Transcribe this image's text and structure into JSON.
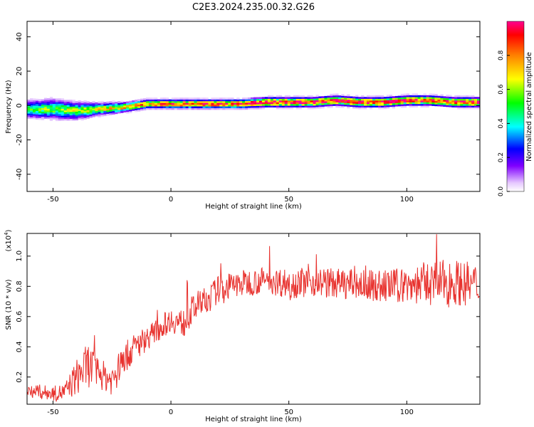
{
  "title": "C2E3.2024.235.00.32.G26",
  "colors": {
    "snr_line": "#e8322e",
    "axis": "#000000"
  },
  "chart_data": [
    {
      "type": "heatmap",
      "xlabel": "Height of straight line (km)",
      "ylabel": "Frequency (Hz)",
      "xlim": [
        -61,
        131
      ],
      "ylim": [
        -50,
        49
      ],
      "xticks": [
        -50,
        0,
        50,
        100
      ],
      "yticks": [
        -40,
        -20,
        0,
        20,
        40
      ],
      "grid": false,
      "colorbar": {
        "label": "Normalized spectral amplitude",
        "range": [
          0,
          1
        ],
        "ticks": [
          "0.0",
          "0.2",
          "0.4",
          "0.6",
          "0.8"
        ]
      },
      "ridge": {
        "x": [
          -61,
          -50,
          -40,
          -30,
          -20,
          -10,
          0,
          10,
          20,
          30,
          40,
          50,
          60,
          70,
          80,
          90,
          100,
          110,
          120,
          131
        ],
        "freq": [
          -2,
          -2,
          -3,
          -2,
          -1,
          1,
          1,
          1,
          1,
          1,
          2,
          2,
          2,
          3,
          2,
          2,
          3,
          3,
          2,
          2
        ],
        "half_width": [
          3.5,
          4,
          3.5,
          2.5,
          2,
          1.8,
          1.8,
          1.8,
          1.8,
          1.8,
          2,
          2,
          2,
          2,
          2,
          2,
          2,
          2,
          2,
          2
        ],
        "peak_amplitude": [
          0.5,
          0.55,
          0.6,
          0.65,
          0.75,
          0.85,
          0.9,
          0.92,
          0.9,
          0.92,
          0.95,
          0.95,
          0.95,
          0.95,
          0.95,
          0.95,
          0.95,
          0.95,
          0.95,
          0.95
        ]
      }
    },
    {
      "type": "line",
      "xlabel": "Height of straight line (km)",
      "ylabel": "SNR (10 * v/v)",
      "ylabel_scale": "(x10",
      "ylabel_scale_exp": "4",
      "ylabel_scale_close": ")",
      "xlim": [
        -61,
        131
      ],
      "ylim": [
        0.02,
        1.15
      ],
      "xticks": [
        -50,
        0,
        50,
        100
      ],
      "yticks": [
        0.2,
        0.4,
        0.6,
        0.8,
        1.0
      ],
      "ytick_labels": [
        "0.2",
        "0.4",
        "0.6",
        "0.8",
        "1.0"
      ],
      "grid": false,
      "series": [
        {
          "x": [
            -61,
            -55,
            -50,
            -45,
            -40,
            -35,
            -30,
            -25,
            -20,
            -15,
            -10,
            -5,
            0,
            5,
            10,
            15,
            20,
            25,
            30,
            40,
            50,
            60,
            70,
            80,
            90,
            100,
            110,
            120,
            131
          ],
          "mean": [
            0.12,
            0.1,
            0.09,
            0.1,
            0.2,
            0.28,
            0.22,
            0.18,
            0.32,
            0.4,
            0.46,
            0.52,
            0.58,
            0.55,
            0.66,
            0.7,
            0.78,
            0.8,
            0.82,
            0.84,
            0.82,
            0.83,
            0.82,
            0.81,
            0.8,
            0.81,
            0.82,
            0.83,
            0.8
          ],
          "spread": [
            0.05,
            0.05,
            0.05,
            0.06,
            0.12,
            0.15,
            0.1,
            0.1,
            0.1,
            0.1,
            0.08,
            0.08,
            0.08,
            0.1,
            0.1,
            0.1,
            0.09,
            0.09,
            0.09,
            0.09,
            0.1,
            0.1,
            0.1,
            0.1,
            0.11,
            0.12,
            0.15,
            0.15,
            0.15
          ]
        }
      ]
    }
  ]
}
